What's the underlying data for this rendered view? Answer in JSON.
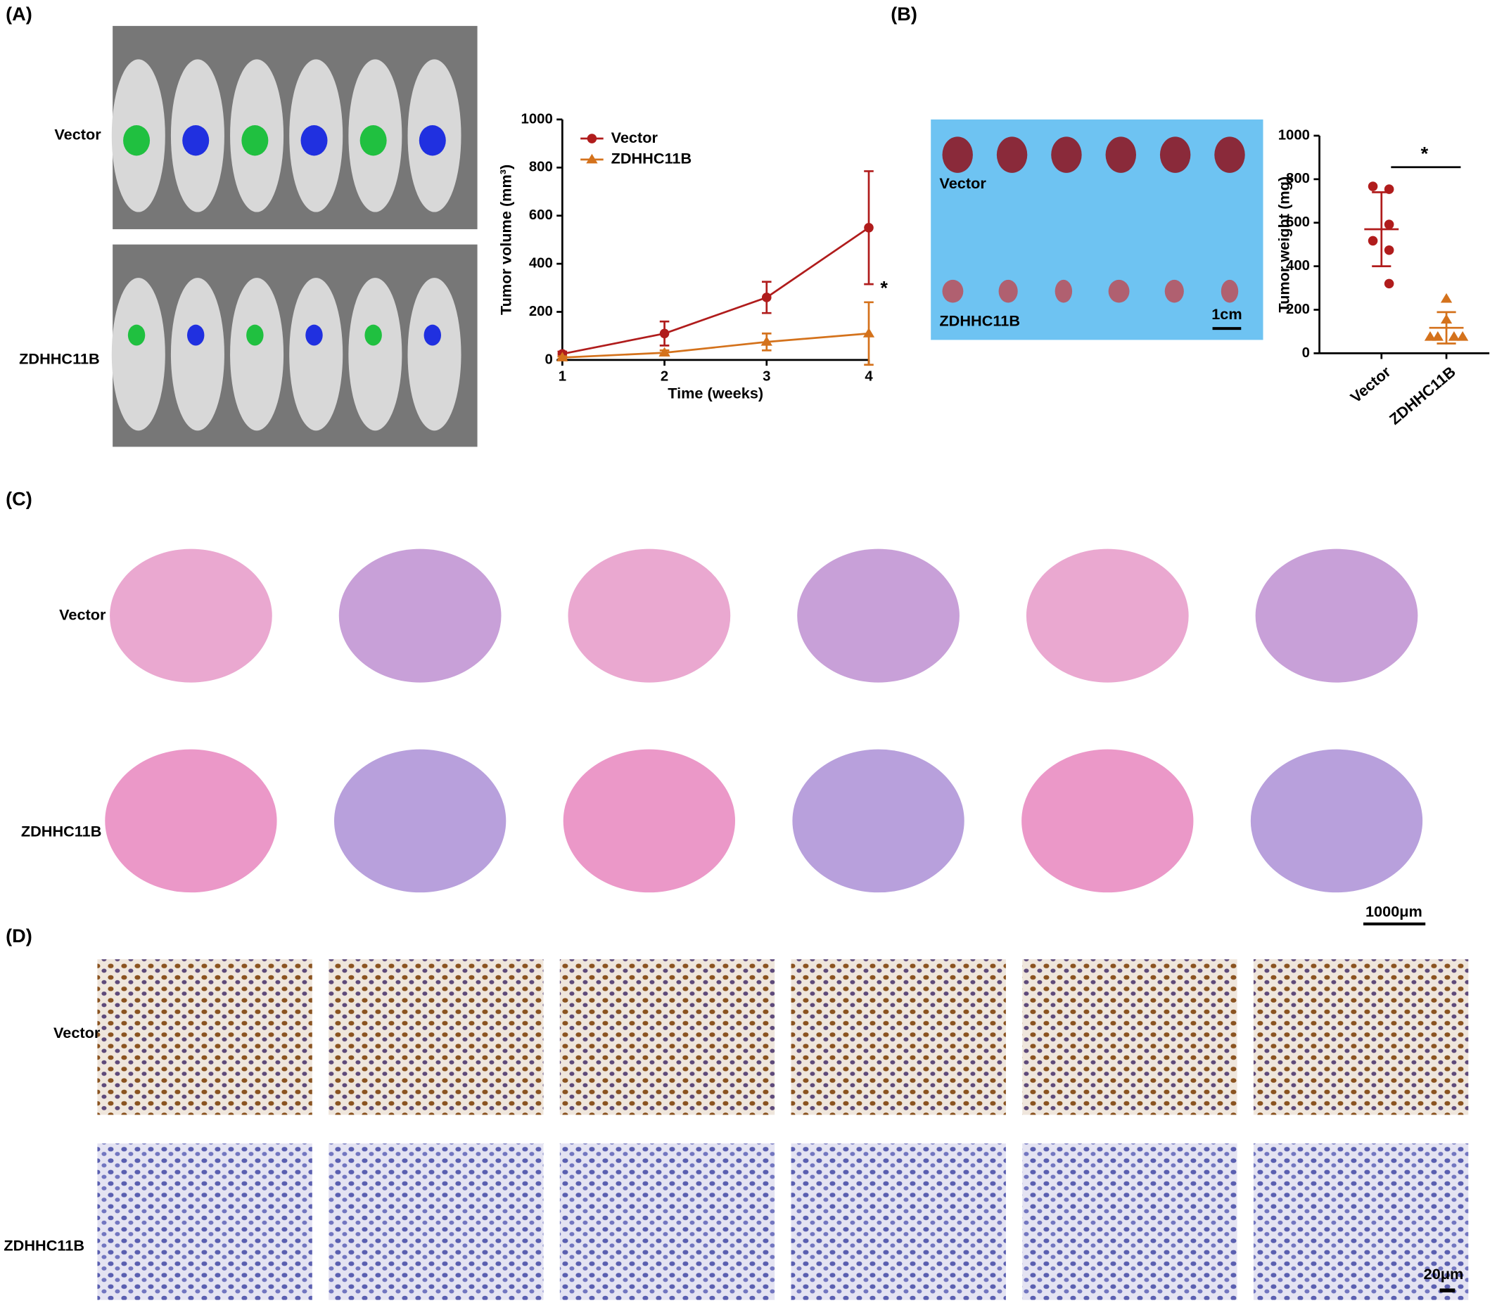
{
  "panel_labels": [
    "(A)",
    "(B)",
    "(C)",
    "(D)"
  ],
  "panel_a": {
    "row_labels": [
      "Vector",
      "ZDHHC11B"
    ]
  },
  "panel_b": {
    "photo_labels": [
      "Vector",
      "ZDHHC11B"
    ],
    "scale_bar": "1cm"
  },
  "panel_c": {
    "row_labels": [
      "Vector",
      "ZDHHC11B"
    ],
    "scale_bar": "1000μm"
  },
  "panel_d": {
    "row_labels": [
      "Vector",
      "ZDHHC11B"
    ],
    "scale_bar": "20μm"
  },
  "chart_data": [
    {
      "type": "line",
      "x_label": "Time (weeks)",
      "y_label": "Tumor volume (mm³)",
      "x": [
        1,
        2,
        3,
        4
      ],
      "xlim": [
        1,
        4
      ],
      "xticks": [
        1,
        2,
        3,
        4
      ],
      "ylim": [
        0,
        1000
      ],
      "yticks": [
        0,
        200,
        400,
        600,
        800,
        1000
      ],
      "legend": "upper left",
      "annotation": "*",
      "series": [
        {
          "name": "Vector",
          "color": "#b01c1c",
          "marker": "circle",
          "values": [
            25,
            110,
            260,
            550
          ],
          "errors": [
            10,
            50,
            65,
            235
          ]
        },
        {
          "name": "ZDHHC11B",
          "color": "#d4721c",
          "marker": "triangle",
          "values": [
            10,
            30,
            75,
            110
          ],
          "errors": [
            5,
            10,
            35,
            130
          ]
        }
      ]
    },
    {
      "type": "dot",
      "y_label": "Tumor weight (mg)",
      "categories": [
        "Vector",
        "ZDHHC11B"
      ],
      "ylim": [
        0,
        1000
      ],
      "yticks": [
        0,
        200,
        400,
        600,
        800,
        1000
      ],
      "annotation": "*",
      "groups": [
        {
          "color": "#b01c1c",
          "marker": "circle",
          "values": [
            767,
            754,
            592,
            517,
            474,
            320
          ],
          "mean": 570,
          "sd": 170
        },
        {
          "color": "#d4721c",
          "marker": "triangle",
          "values": [
            250,
            154,
            75,
            75,
            75,
            75
          ],
          "mean": 117,
          "sd": 72
        }
      ]
    }
  ]
}
